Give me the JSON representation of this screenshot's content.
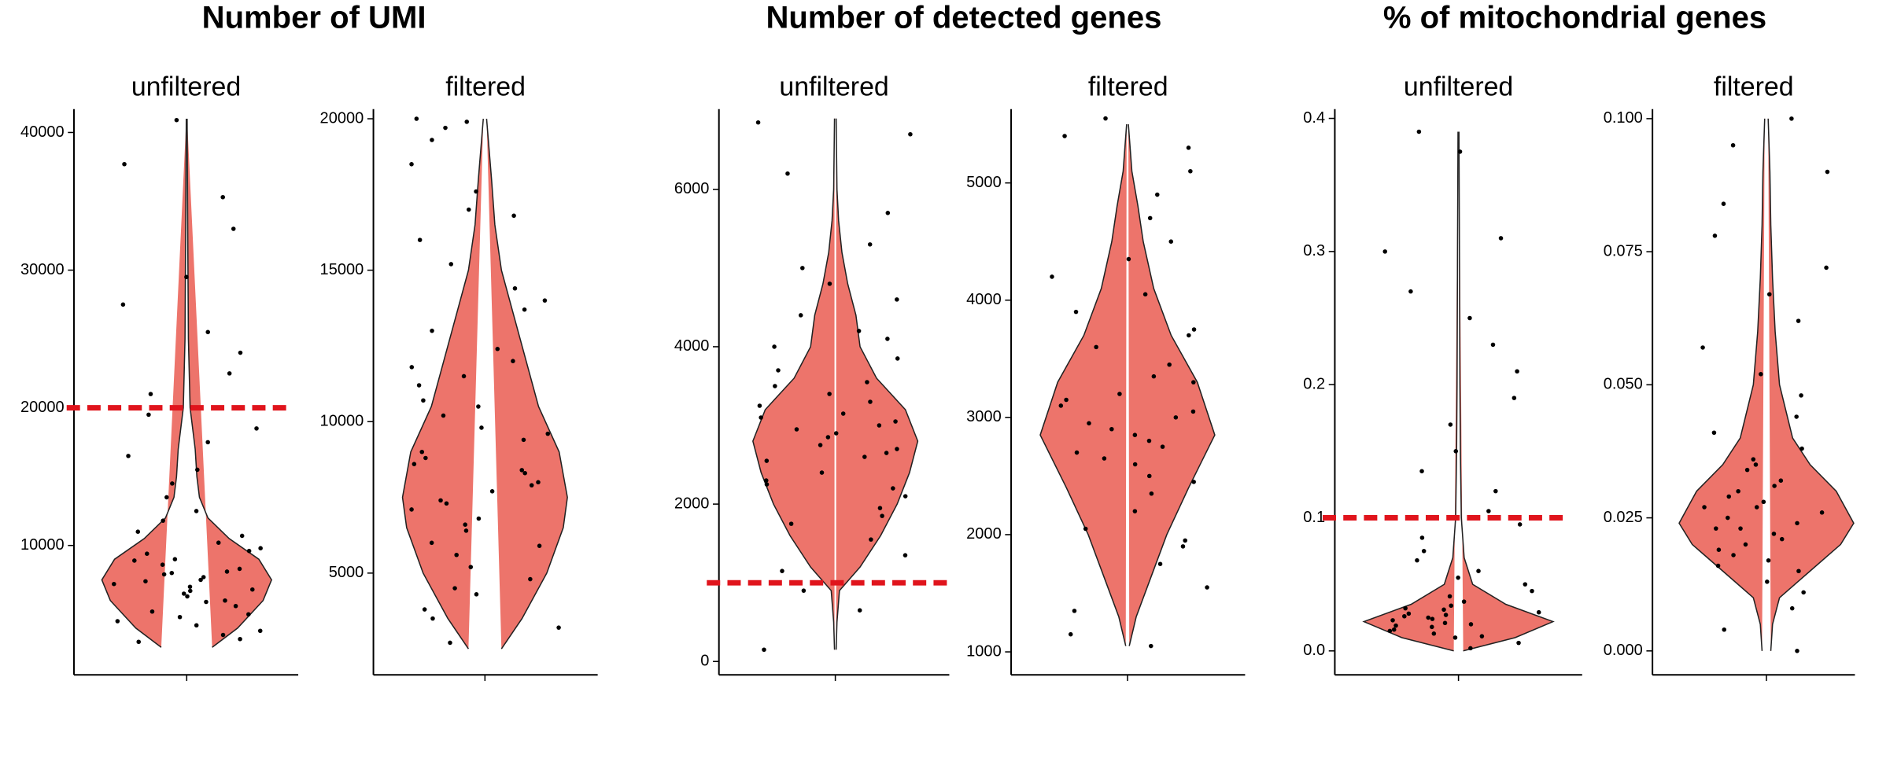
{
  "chart_data": [
    {
      "type": "violin",
      "group_title": "Number of UMI",
      "title": "unfiltered",
      "color": "#ed746b",
      "point_color": "#000000",
      "ylim": [
        600,
        41700
      ],
      "yticks": [
        10000,
        20000,
        30000,
        40000
      ],
      "hline": 20000,
      "hline_color": "#e0141c",
      "violin": {
        "y": [
          2600,
          4000,
          6000,
          7500,
          9000,
          10500,
          12000,
          13500,
          15000,
          17000,
          20000,
          25000,
          30000,
          35000,
          41000
        ],
        "density": [
          0.3,
          0.6,
          0.9,
          1.0,
          0.85,
          0.5,
          0.25,
          0.15,
          0.12,
          0.1,
          0.04,
          0.02,
          0.015,
          0.01,
          0.005
        ]
      },
      "values": [
        3000,
        3500,
        4200,
        4800,
        5200,
        5600,
        6000,
        6300,
        6700,
        7000,
        7200,
        7500,
        7700,
        8000,
        8300,
        8600,
        9000,
        9400,
        9800,
        10200,
        10700,
        3200,
        4500,
        5900,
        6800,
        7400,
        8100,
        8900,
        9600,
        11000,
        11800,
        12500,
        13500,
        14500,
        15500,
        16500,
        17500,
        18500,
        19500,
        21000,
        22500,
        24000,
        25500,
        27500,
        29500,
        33000,
        35300,
        37700,
        40900,
        3800,
        5000,
        6500,
        7900
      ]
    },
    {
      "type": "violin",
      "title": "filtered",
      "color": "#ed746b",
      "point_color": "#000000",
      "ylim": [
        1640,
        20320
      ],
      "yticks": [
        5000,
        10000,
        15000,
        20000
      ],
      "violin": {
        "y": [
          2500,
          3500,
          5000,
          6500,
          7500,
          9000,
          10500,
          12000,
          13500,
          15000,
          16500,
          18000,
          19000,
          20000
        ],
        "density": [
          0.2,
          0.45,
          0.75,
          0.95,
          1.0,
          0.9,
          0.65,
          0.5,
          0.35,
          0.2,
          0.12,
          0.08,
          0.05,
          0.02
        ]
      },
      "values": [
        2700,
        3200,
        3800,
        4300,
        4800,
        5200,
        5600,
        6000,
        6400,
        6800,
        7100,
        7400,
        7700,
        8000,
        8300,
        8600,
        9000,
        9400,
        9800,
        10200,
        10700,
        11200,
        11800,
        12400,
        13000,
        13700,
        14400,
        15200,
        16000,
        16800,
        17600,
        18500,
        19300,
        19900,
        5900,
        6600,
        7300,
        8800,
        9600,
        10500,
        12000,
        14000,
        3500,
        4500,
        7900,
        8400,
        11500,
        17000,
        19700,
        20000
      ]
    },
    {
      "type": "violin",
      "group_title": "Number of detected genes",
      "title": "unfiltered",
      "color": "#ed746b",
      "point_color": "#000000",
      "ylim": [
        -170,
        7020
      ],
      "yticks": [
        0,
        2000,
        4000,
        6000
      ],
      "hline": 1000,
      "hline_color": "#e0141c",
      "violin": {
        "y": [
          150,
          500,
          900,
          1200,
          1600,
          2000,
          2400,
          2800,
          3200,
          3600,
          4000,
          4400,
          4800,
          5200,
          5600,
          6000,
          6900
        ],
        "density": [
          0.01,
          0.02,
          0.05,
          0.3,
          0.55,
          0.75,
          0.9,
          1.0,
          0.85,
          0.5,
          0.3,
          0.25,
          0.15,
          0.08,
          0.04,
          0.02,
          0.01
        ]
      },
      "values": [
        150,
        650,
        900,
        1150,
        1350,
        1550,
        1750,
        1950,
        2100,
        2250,
        2400,
        2550,
        2650,
        2750,
        2850,
        2950,
        3050,
        3150,
        3250,
        3400,
        3550,
        3700,
        3850,
        4000,
        4200,
        4400,
        4600,
        4800,
        5000,
        5300,
        5700,
        6200,
        6700,
        6850,
        2300,
        2600,
        2900,
        3100,
        3300,
        2200,
        2700,
        3000,
        3500,
        1850,
        4100
      ]
    },
    {
      "type": "violin",
      "title": "filtered",
      "color": "#ed746b",
      "point_color": "#000000",
      "ylim": [
        804,
        5630
      ],
      "yticks": [
        1000,
        2000,
        3000,
        4000,
        5000
      ],
      "violin": {
        "y": [
          1050,
          1300,
          1600,
          2000,
          2400,
          2850,
          3300,
          3700,
          4100,
          4500,
          4800,
          5100,
          5500
        ],
        "density": [
          0.02,
          0.1,
          0.25,
          0.45,
          0.7,
          1.0,
          0.8,
          0.5,
          0.3,
          0.18,
          0.12,
          0.05,
          0.01
        ]
      },
      "values": [
        1050,
        1150,
        1350,
        1550,
        1750,
        1900,
        2050,
        2200,
        2350,
        2500,
        2600,
        2700,
        2800,
        2900,
        3000,
        3100,
        3200,
        3300,
        3450,
        3600,
        3750,
        3900,
        4050,
        4200,
        4350,
        4500,
        4700,
        4900,
        5100,
        5300,
        5400,
        5550,
        2450,
        2750,
        2950,
        3150,
        3350,
        2650,
        2850,
        3050,
        1950,
        3700
      ]
    },
    {
      "type": "violin",
      "group_title": "% of mitochondrial genes",
      "title": "unfiltered",
      "color": "#ed746b",
      "point_color": "#000000",
      "ylim": [
        -0.018,
        0.407
      ],
      "yticks": [
        {
          "value": 0,
          "label": "0.0"
        },
        0.1,
        0.2,
        0.3,
        0.4
      ],
      "hline": 0.1,
      "hline_color": "#e0141c",
      "violin": {
        "y": [
          0,
          0.01,
          0.022,
          0.035,
          0.05,
          0.07,
          0.1,
          0.15,
          0.2,
          0.3,
          0.39
        ],
        "density": [
          0.05,
          0.6,
          1.0,
          0.5,
          0.15,
          0.06,
          0.03,
          0.02,
          0.015,
          0.01,
          0.005
        ]
      },
      "values": [
        0.002,
        0.006,
        0.01,
        0.013,
        0.016,
        0.019,
        0.021,
        0.023,
        0.025,
        0.027,
        0.029,
        0.031,
        0.034,
        0.037,
        0.041,
        0.045,
        0.05,
        0.055,
        0.06,
        0.068,
        0.075,
        0.085,
        0.095,
        0.105,
        0.12,
        0.135,
        0.15,
        0.17,
        0.19,
        0.21,
        0.23,
        0.25,
        0.27,
        0.3,
        0.31,
        0.375,
        0.39,
        0.015,
        0.02,
        0.024,
        0.028,
        0.032,
        0.018,
        0.026,
        0.011
      ]
    },
    {
      "type": "violin",
      "title": "filtered",
      "color": "#ed746b",
      "point_color": "#000000",
      "ylim": [
        -0.0045,
        0.1018
      ],
      "yticks": [
        {
          "value": 0,
          "label": "0.000"
        },
        0.025,
        {
          "value": 0.05,
          "label": "0.050"
        },
        0.075,
        {
          "value": 0.1,
          "label": "0.100"
        }
      ],
      "violin": {
        "y": [
          0,
          0.005,
          0.01,
          0.015,
          0.02,
          0.024,
          0.03,
          0.035,
          0.04,
          0.05,
          0.06,
          0.07,
          0.08,
          0.09,
          0.1
        ],
        "density": [
          0.05,
          0.07,
          0.15,
          0.5,
          0.85,
          1.0,
          0.8,
          0.5,
          0.3,
          0.15,
          0.1,
          0.07,
          0.05,
          0.04,
          0.02
        ]
      },
      "values": [
        0,
        0.004,
        0.008,
        0.011,
        0.013,
        0.015,
        0.017,
        0.019,
        0.02,
        0.021,
        0.022,
        0.023,
        0.024,
        0.025,
        0.026,
        0.027,
        0.028,
        0.029,
        0.03,
        0.032,
        0.034,
        0.036,
        0.038,
        0.041,
        0.044,
        0.048,
        0.052,
        0.057,
        0.062,
        0.067,
        0.072,
        0.078,
        0.084,
        0.09,
        0.095,
        0.1,
        0.018,
        0.023,
        0.027,
        0.031,
        0.035,
        0.016
      ]
    }
  ]
}
